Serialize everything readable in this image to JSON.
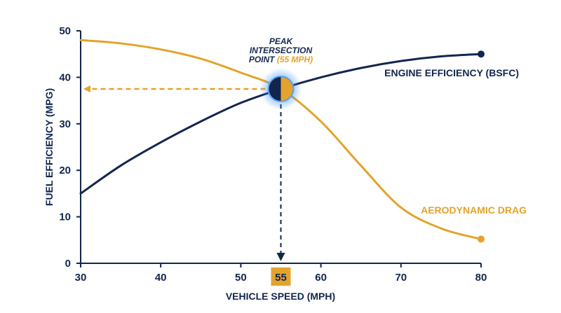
{
  "chart_data": {
    "type": "line",
    "xlabel": "VEHICLE SPEED (MPH)",
    "ylabel": "FUEL EFFICIENCY (MPG)",
    "xlim": [
      30,
      80
    ],
    "ylim": [
      0,
      50
    ],
    "x_ticks": [
      30,
      40,
      50,
      60,
      70,
      80
    ],
    "y_ticks": [
      0,
      10,
      20,
      30,
      40,
      50
    ],
    "grid": false,
    "colors": {
      "navy": "#12264d",
      "gold": "#e3a32c",
      "glow": "#2f8bff"
    },
    "series": [
      {
        "name": "ENGINE EFFICIENCY (BSFC)",
        "color": "#12264d",
        "end_marker": true,
        "points": [
          [
            30,
            15
          ],
          [
            35,
            21
          ],
          [
            40,
            26
          ],
          [
            45,
            30.5
          ],
          [
            50,
            34.5
          ],
          [
            55,
            37.5
          ],
          [
            60,
            40
          ],
          [
            65,
            42
          ],
          [
            70,
            43.5
          ],
          [
            75,
            44.5
          ],
          [
            80,
            45
          ]
        ]
      },
      {
        "name": "AERODYNAMIC DRAG",
        "color": "#e3a32c",
        "end_marker": true,
        "points": [
          [
            30,
            48
          ],
          [
            35,
            47.3
          ],
          [
            40,
            46
          ],
          [
            45,
            44
          ],
          [
            50,
            41
          ],
          [
            55,
            37.5
          ],
          [
            60,
            30.5
          ],
          [
            65,
            21
          ],
          [
            70,
            12
          ],
          [
            75,
            7.5
          ],
          [
            80,
            5.2
          ]
        ]
      }
    ],
    "annotation": {
      "x": 55,
      "y": 37.5,
      "label_lines": [
        "PEAK",
        "INTERSECTION"
      ],
      "label_prefix": "POINT",
      "label_accent": "(55 MPH)",
      "x_highlight": "55"
    }
  }
}
